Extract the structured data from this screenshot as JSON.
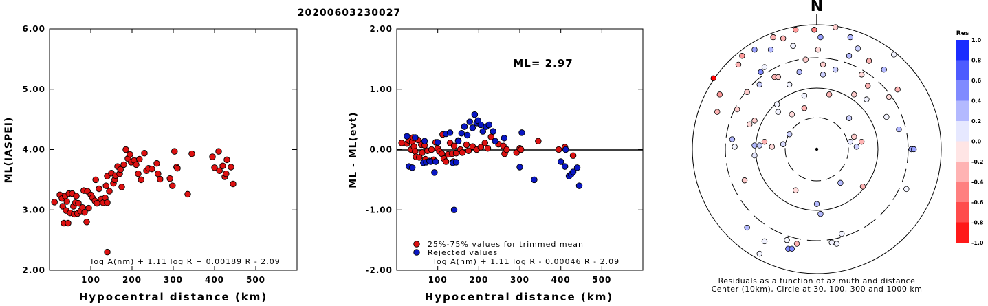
{
  "title": "20200603230027",
  "colors": {
    "accepted": "#dd1111",
    "rejected": "#0a17c4",
    "edge": "#000000"
  },
  "chart_data": [
    {
      "type": "scatter",
      "panel": "ml-vs-distance",
      "ylabel": "ML(IASPEI)",
      "xlabel": "Hypocentral distance (km)",
      "xlim": [
        0,
        600
      ],
      "ylim": [
        2.0,
        6.0
      ],
      "xticks": [
        "100",
        "200",
        "300",
        "400",
        "500"
      ],
      "xtick_values": [
        100,
        200,
        300,
        400,
        500
      ],
      "yticks": [
        "2.00",
        "3.00",
        "4.00",
        "5.00",
        "6.00"
      ],
      "ytick_values": [
        2,
        3,
        4,
        5,
        6
      ],
      "formula": "log A(nm) + 1.11 log R + 0.00189 R - 2.09",
      "points": [
        [
          12,
          3.13
        ],
        [
          25,
          3.25
        ],
        [
          30,
          3.19
        ],
        [
          32,
          3.06
        ],
        [
          35,
          2.78
        ],
        [
          38,
          3.23
        ],
        [
          40,
          2.99
        ],
        [
          42,
          3.14
        ],
        [
          45,
          2.78
        ],
        [
          47,
          3.27
        ],
        [
          50,
          2.95
        ],
        [
          55,
          3.27
        ],
        [
          58,
          3.06
        ],
        [
          60,
          2.93
        ],
        [
          63,
          3.12
        ],
        [
          65,
          3.23
        ],
        [
          68,
          2.94
        ],
        [
          70,
          3.11
        ],
        [
          75,
          2.98
        ],
        [
          80,
          3.04
        ],
        [
          83,
          3.32
        ],
        [
          85,
          2.96
        ],
        [
          90,
          2.8
        ],
        [
          92,
          3.31
        ],
        [
          95,
          3.03
        ],
        [
          100,
          3.25
        ],
        [
          104,
          3.2
        ],
        [
          110,
          3.15
        ],
        [
          112,
          3.5
        ],
        [
          115,
          3.11
        ],
        [
          120,
          3.35
        ],
        [
          125,
          3.18
        ],
        [
          130,
          3.12
        ],
        [
          135,
          3.2
        ],
        [
          137,
          3.4
        ],
        [
          140,
          3.12
        ],
        [
          140,
          3.56
        ],
        [
          145,
          3.31
        ],
        [
          150,
          3.61
        ],
        [
          155,
          3.44
        ],
        [
          158,
          3.5
        ],
        [
          160,
          3.57
        ],
        [
          165,
          3.72
        ],
        [
          170,
          3.6
        ],
        [
          172,
          3.67
        ],
        [
          175,
          3.38
        ],
        [
          180,
          3.75
        ],
        [
          185,
          4.0
        ],
        [
          190,
          3.85
        ],
        [
          195,
          3.92
        ],
        [
          198,
          3.79
        ],
        [
          205,
          3.82
        ],
        [
          210,
          3.75
        ],
        [
          215,
          3.6
        ],
        [
          218,
          3.84
        ],
        [
          222,
          3.5
        ],
        [
          230,
          3.94
        ],
        [
          235,
          3.65
        ],
        [
          240,
          3.69
        ],
        [
          248,
          3.68
        ],
        [
          260,
          3.77
        ],
        [
          263,
          3.6
        ],
        [
          268,
          3.51
        ],
        [
          292,
          3.52
        ],
        [
          298,
          3.4
        ],
        [
          303,
          3.97
        ],
        [
          308,
          3.71
        ],
        [
          310,
          3.69
        ],
        [
          335,
          3.26
        ],
        [
          345,
          3.93
        ],
        [
          395,
          3.88
        ],
        [
          400,
          3.7
        ],
        [
          410,
          3.97
        ],
        [
          412,
          3.65
        ],
        [
          420,
          3.73
        ],
        [
          425,
          3.55
        ],
        [
          428,
          3.6
        ],
        [
          430,
          3.83
        ],
        [
          440,
          3.71
        ],
        [
          445,
          3.43
        ],
        [
          140,
          2.3
        ]
      ]
    },
    {
      "type": "scatter",
      "panel": "residual-vs-distance",
      "ylabel": "ML - ML(evt)",
      "xlabel": "Hypocentral distance (km)",
      "xlim": [
        0,
        600
      ],
      "ylim": [
        -2.0,
        2.0
      ],
      "xticks": [
        "100",
        "200",
        "300",
        "400",
        "500"
      ],
      "xtick_values": [
        100,
        200,
        300,
        400,
        500
      ],
      "yticks": [
        "-2.00",
        "-1.00",
        "0.00",
        "1.00",
        "2.00"
      ],
      "ytick_values": [
        -2,
        -1,
        0,
        1,
        2
      ],
      "ml_label": "ML= 2.97",
      "legend": [
        "25%-75% values for trimmed mean",
        "Rejected values"
      ],
      "formula": "log A(nm) + 1.11 log R - 0.00046 R - 2.09",
      "series": [
        {
          "name": "25%-75% values for trimmed mean",
          "points": [
            [
              12,
              0.11
            ],
            [
              25,
              0.1
            ],
            [
              30,
              0.15
            ],
            [
              35,
              0.0
            ],
            [
              38,
              0.13
            ],
            [
              40,
              0.2
            ],
            [
              42,
              0.05
            ],
            [
              45,
              -0.03
            ],
            [
              47,
              -0.12
            ],
            [
              52,
              0.16
            ],
            [
              55,
              -0.13
            ],
            [
              60,
              0.08
            ],
            [
              62,
              -0.05
            ],
            [
              68,
              0.07
            ],
            [
              70,
              -0.16
            ],
            [
              75,
              -0.02
            ],
            [
              85,
              0.0
            ],
            [
              90,
              -0.17
            ],
            [
              95,
              0.12
            ],
            [
              100,
              0.02
            ],
            [
              104,
              -0.03
            ],
            [
              110,
              -0.07
            ],
            [
              112,
              0.25
            ],
            [
              115,
              -0.15
            ],
            [
              120,
              -0.2
            ],
            [
              125,
              -0.08
            ],
            [
              130,
              0.11
            ],
            [
              135,
              -0.07
            ],
            [
              138,
              -0.2
            ],
            [
              140,
              0.06
            ],
            [
              145,
              -0.06
            ],
            [
              150,
              0.15
            ],
            [
              155,
              0.0
            ],
            [
              160,
              -0.05
            ],
            [
              170,
              0.08
            ],
            [
              175,
              -0.02
            ],
            [
              185,
              0.05
            ],
            [
              195,
              0.0
            ],
            [
              205,
              0.04
            ],
            [
              215,
              0.11
            ],
            [
              222,
              0.02
            ],
            [
              230,
              0.21
            ],
            [
              248,
              0.09
            ],
            [
              260,
              0.06
            ],
            [
              263,
              -0.07
            ],
            [
              268,
              0.0
            ],
            [
              292,
              -0.05
            ],
            [
              300,
              0.02
            ],
            [
              303,
              0.0
            ],
            [
              345,
              0.14
            ],
            [
              395,
              0.0
            ],
            [
              410,
              0.04
            ],
            [
              430,
              -0.1
            ]
          ]
        },
        {
          "name": "Rejected values",
          "points": [
            [
              25,
              0.22
            ],
            [
              30,
              -0.28
            ],
            [
              38,
              -0.3
            ],
            [
              45,
              0.2
            ],
            [
              65,
              -0.22
            ],
            [
              68,
              0.14
            ],
            [
              72,
              -0.21
            ],
            [
              80,
              -0.19
            ],
            [
              83,
              -0.2
            ],
            [
              92,
              -0.38
            ],
            [
              95,
              -0.2
            ],
            [
              100,
              0.12
            ],
            [
              120,
              0.26
            ],
            [
              130,
              0.28
            ],
            [
              137,
              -0.22
            ],
            [
              140,
              -1.0
            ],
            [
              145,
              -0.21
            ],
            [
              150,
              0.14
            ],
            [
              158,
              0.27
            ],
            [
              165,
              0.38
            ],
            [
              172,
              0.24
            ],
            [
              178,
              0.46
            ],
            [
              185,
              0.36
            ],
            [
              190,
              0.58
            ],
            [
              195,
              0.44
            ],
            [
              198,
              0.48
            ],
            [
              205,
              0.41
            ],
            [
              210,
              0.3
            ],
            [
              218,
              0.38
            ],
            [
              225,
              0.41
            ],
            [
              235,
              0.3
            ],
            [
              240,
              0.14
            ],
            [
              262,
              0.19
            ],
            [
              300,
              -0.29
            ],
            [
              305,
              0.28
            ],
            [
              335,
              -0.5
            ],
            [
              400,
              -0.2
            ],
            [
              410,
              -0.28
            ],
            [
              420,
              -0.44
            ],
            [
              425,
              -0.41
            ],
            [
              430,
              -0.37
            ],
            [
              440,
              -0.3
            ],
            [
              445,
              -0.6
            ],
            [
              412,
              0.0
            ]
          ]
        }
      ]
    },
    {
      "type": "scatter",
      "panel": "azimuth-distance-residuals",
      "north_label": "N",
      "caption_line1": "Residuals as a function of azimuth and distance",
      "caption_line2": "Center (10km), Circle at 30, 100, 300 and 1000 km",
      "colorbar_label": "Res",
      "colorbar_ticks": [
        "1.0",
        "0.8",
        "0.6",
        "0.4",
        "0.2",
        "0.0",
        "-0.2",
        "-0.4",
        "-0.6",
        "-0.8",
        "-1.0"
      ],
      "colorbar_values": [
        1.0,
        0.8,
        0.6,
        0.4,
        0.2,
        0.0,
        -0.2,
        -0.4,
        -0.6,
        -0.8,
        -1.0
      ],
      "stations": [
        [
          -0.42,
          -0.74,
          0.05
        ],
        [
          -0.24,
          -0.73,
          0.03
        ],
        [
          -0.23,
          -0.8,
          0.5
        ],
        [
          -0.2,
          -0.8,
          0.5
        ],
        [
          0.12,
          -0.75,
          0.05
        ],
        [
          0.16,
          -0.76,
          0.05
        ],
        [
          -0.17,
          -0.33,
          -0.15
        ],
        [
          0.19,
          -0.27,
          0.3
        ],
        [
          0.37,
          -0.3,
          -0.3
        ],
        [
          0.72,
          -0.32,
          0.05
        ],
        [
          0.76,
          0.0,
          0.4
        ],
        [
          0.78,
          0.0,
          0.4
        ],
        [
          -0.58,
          -0.25,
          -0.2
        ],
        [
          -0.5,
          -0.05,
          0.1
        ],
        [
          -0.66,
          0.02,
          0.05
        ],
        [
          -0.5,
          0.03,
          0.3
        ],
        [
          -0.46,
          0.03,
          0.2
        ],
        [
          -0.42,
          0.06,
          -0.3
        ],
        [
          -0.36,
          0.02,
          -0.15
        ],
        [
          -0.27,
          0.04,
          0.15
        ],
        [
          -0.22,
          0.12,
          0.2
        ],
        [
          -0.5,
          0.23,
          -0.2
        ],
        [
          -0.54,
          0.2,
          -0.15
        ],
        [
          0.27,
          0.06,
          0.1
        ],
        [
          0.32,
          0.02,
          0.2
        ],
        [
          0.3,
          0.1,
          -0.2
        ],
        [
          0.36,
          0.06,
          -0.3
        ],
        [
          0.66,
          0.16,
          0.3
        ],
        [
          0.56,
          0.26,
          0.05
        ],
        [
          0.26,
          0.25,
          0.2
        ],
        [
          -0.8,
          0.3,
          -0.3
        ],
        [
          -0.78,
          0.44,
          -0.4
        ],
        [
          -0.64,
          0.32,
          -0.2
        ],
        [
          -0.56,
          0.46,
          -0.2
        ],
        [
          -0.46,
          0.52,
          0.2
        ],
        [
          -0.45,
          0.62,
          0.5
        ],
        [
          -0.34,
          0.58,
          -0.3
        ],
        [
          -0.31,
          0.58,
          -0.2
        ],
        [
          -0.32,
          0.36,
          0.05
        ],
        [
          -0.2,
          0.28,
          -0.15
        ],
        [
          -0.1,
          0.33,
          -0.3
        ],
        [
          -0.14,
          0.62,
          0.3
        ],
        [
          -0.09,
          0.72,
          -0.2
        ],
        [
          -0.19,
          0.83,
          0.05
        ],
        [
          -0.63,
          0.68,
          -0.3
        ],
        [
          -0.6,
          0.75,
          -0.4
        ],
        [
          -0.42,
          0.66,
          0.05
        ],
        [
          -0.37,
          0.8,
          0.3
        ],
        [
          -0.35,
          0.9,
          -0.3
        ],
        [
          -0.17,
          0.96,
          -0.4
        ],
        [
          -0.02,
          0.96,
          -0.5
        ],
        [
          0.03,
          0.9,
          0.4
        ],
        [
          0.15,
          0.98,
          -0.2
        ],
        [
          0.27,
          0.9,
          0.3
        ],
        [
          -0.83,
          0.57,
          -1.0
        ],
        [
          -0.5,
          0.8,
          0.4
        ],
        [
          0.05,
          0.6,
          0.2
        ],
        [
          0.1,
          0.44,
          -0.3
        ],
        [
          0.3,
          0.44,
          -0.2
        ],
        [
          0.4,
          0.4,
          0.05
        ],
        [
          0.41,
          0.51,
          -0.3
        ],
        [
          0.36,
          0.6,
          -0.15
        ],
        [
          0.15,
          0.64,
          0.2
        ],
        [
          0.01,
          0.8,
          -0.15
        ],
        [
          0.05,
          0.68,
          -0.2
        ],
        [
          -0.1,
          0.43,
          0.05
        ],
        [
          0.26,
          0.75,
          0.3
        ],
        [
          0.33,
          0.81,
          0.2
        ],
        [
          0.42,
          0.71,
          -0.3
        ],
        [
          0.54,
          0.64,
          0.3
        ],
        [
          0.65,
          0.48,
          -0.3
        ],
        [
          0.62,
          0.76,
          0.05
        ],
        [
          -0.56,
          -0.63,
          0.3
        ],
        [
          0.2,
          -0.68,
          0.05
        ],
        [
          0.03,
          -0.52,
          0.3
        ],
        [
          0.0,
          -0.44,
          0.3
        ],
        [
          -0.46,
          -0.84,
          0.05
        ],
        [
          -0.31,
          0.3,
          0.05
        ],
        [
          -0.68,
          0.08,
          0.3
        ],
        [
          -0.16,
          -0.76,
          -0.3
        ],
        [
          0.58,
          0.42,
          -0.15
        ],
        [
          -0.22,
          0.52,
          0.05
        ],
        [
          -0.27,
          0.89,
          -0.3
        ]
      ]
    }
  ]
}
